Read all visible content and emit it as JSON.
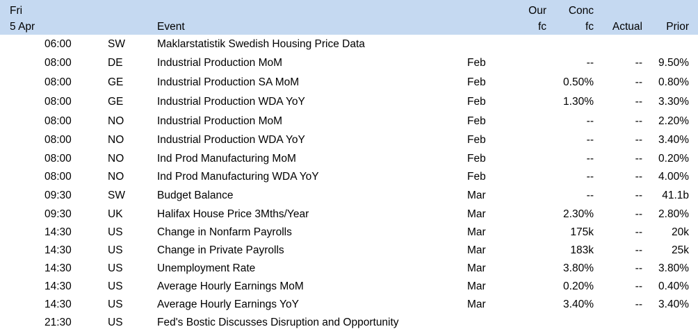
{
  "header": {
    "day_line1": "Fri",
    "day_line2": "5 Apr",
    "event": "Event",
    "our_fc_line1": "Our",
    "our_fc_line2": "fc",
    "conc_fc_line1": "Conc",
    "conc_fc_line2": "fc",
    "actual": "Actual",
    "prior": "Prior"
  },
  "rows": [
    {
      "time": "06:00",
      "country": "SW",
      "event": "Maklarstatistik Swedish Housing Price Data",
      "period": "",
      "our_fc": "",
      "conc_fc": "",
      "actual": "",
      "prior": ""
    },
    {
      "time": "08:00",
      "country": "DE",
      "event": "Industrial Production MoM",
      "period": "Feb",
      "our_fc": "",
      "conc_fc": "--",
      "actual": "--",
      "prior": "9.50%"
    },
    {
      "time": "08:00",
      "country": "GE",
      "event": "Industrial Production SA MoM",
      "period": "Feb",
      "our_fc": "",
      "conc_fc": "0.50%",
      "actual": "--",
      "prior": "0.80%"
    },
    {
      "time": "08:00",
      "country": "GE",
      "event": "Industrial Production WDA YoY",
      "period": "Feb",
      "our_fc": "",
      "conc_fc": "1.30%",
      "actual": "--",
      "prior": "3.30%"
    },
    {
      "time": "08:00",
      "country": "NO",
      "event": "Industrial Production MoM",
      "period": "Feb",
      "our_fc": "",
      "conc_fc": "--",
      "actual": "--",
      "prior": "2.20%"
    },
    {
      "time": "08:00",
      "country": "NO",
      "event": "Industrial Production WDA YoY",
      "period": "Feb",
      "our_fc": "",
      "conc_fc": "--",
      "actual": "--",
      "prior": "3.40%"
    },
    {
      "time": "08:00",
      "country": "NO",
      "event": "Ind Prod Manufacturing MoM",
      "period": "Feb",
      "our_fc": "",
      "conc_fc": "--",
      "actual": "--",
      "prior": "0.20%"
    },
    {
      "time": "08:00",
      "country": "NO",
      "event": "Ind Prod Manufacturing WDA YoY",
      "period": "Feb",
      "our_fc": "",
      "conc_fc": "--",
      "actual": "--",
      "prior": "4.00%"
    },
    {
      "time": "09:30",
      "country": "SW",
      "event": "Budget Balance",
      "period": "Mar",
      "our_fc": "",
      "conc_fc": "--",
      "actual": "--",
      "prior": "41.1b"
    },
    {
      "time": "09:30",
      "country": "UK",
      "event": "Halifax House Price 3Mths/Year",
      "period": "Mar",
      "our_fc": "",
      "conc_fc": "2.30%",
      "actual": "--",
      "prior": "2.80%"
    },
    {
      "time": "14:30",
      "country": "US",
      "event": "Change in Nonfarm Payrolls",
      "period": "Mar",
      "our_fc": "",
      "conc_fc": "175k",
      "actual": "--",
      "prior": "20k"
    },
    {
      "time": "14:30",
      "country": "US",
      "event": "Change in Private Payrolls",
      "period": "Mar",
      "our_fc": "",
      "conc_fc": "183k",
      "actual": "--",
      "prior": "25k"
    },
    {
      "time": "14:30",
      "country": "US",
      "event": "Unemployment Rate",
      "period": "Mar",
      "our_fc": "",
      "conc_fc": "3.80%",
      "actual": "--",
      "prior": "3.80%"
    },
    {
      "time": "14:30",
      "country": "US",
      "event": "Average Hourly Earnings MoM",
      "period": "Mar",
      "our_fc": "",
      "conc_fc": "0.20%",
      "actual": "--",
      "prior": "0.40%"
    },
    {
      "time": "14:30",
      "country": "US",
      "event": "Average Hourly Earnings YoY",
      "period": "Mar",
      "our_fc": "",
      "conc_fc": "3.40%",
      "actual": "--",
      "prior": "3.40%"
    },
    {
      "time": "21:30",
      "country": "US",
      "event": "Fed's Bostic Discusses Disruption and Opportunity",
      "period": "",
      "our_fc": "",
      "conc_fc": "",
      "actual": "",
      "prior": ""
    }
  ]
}
